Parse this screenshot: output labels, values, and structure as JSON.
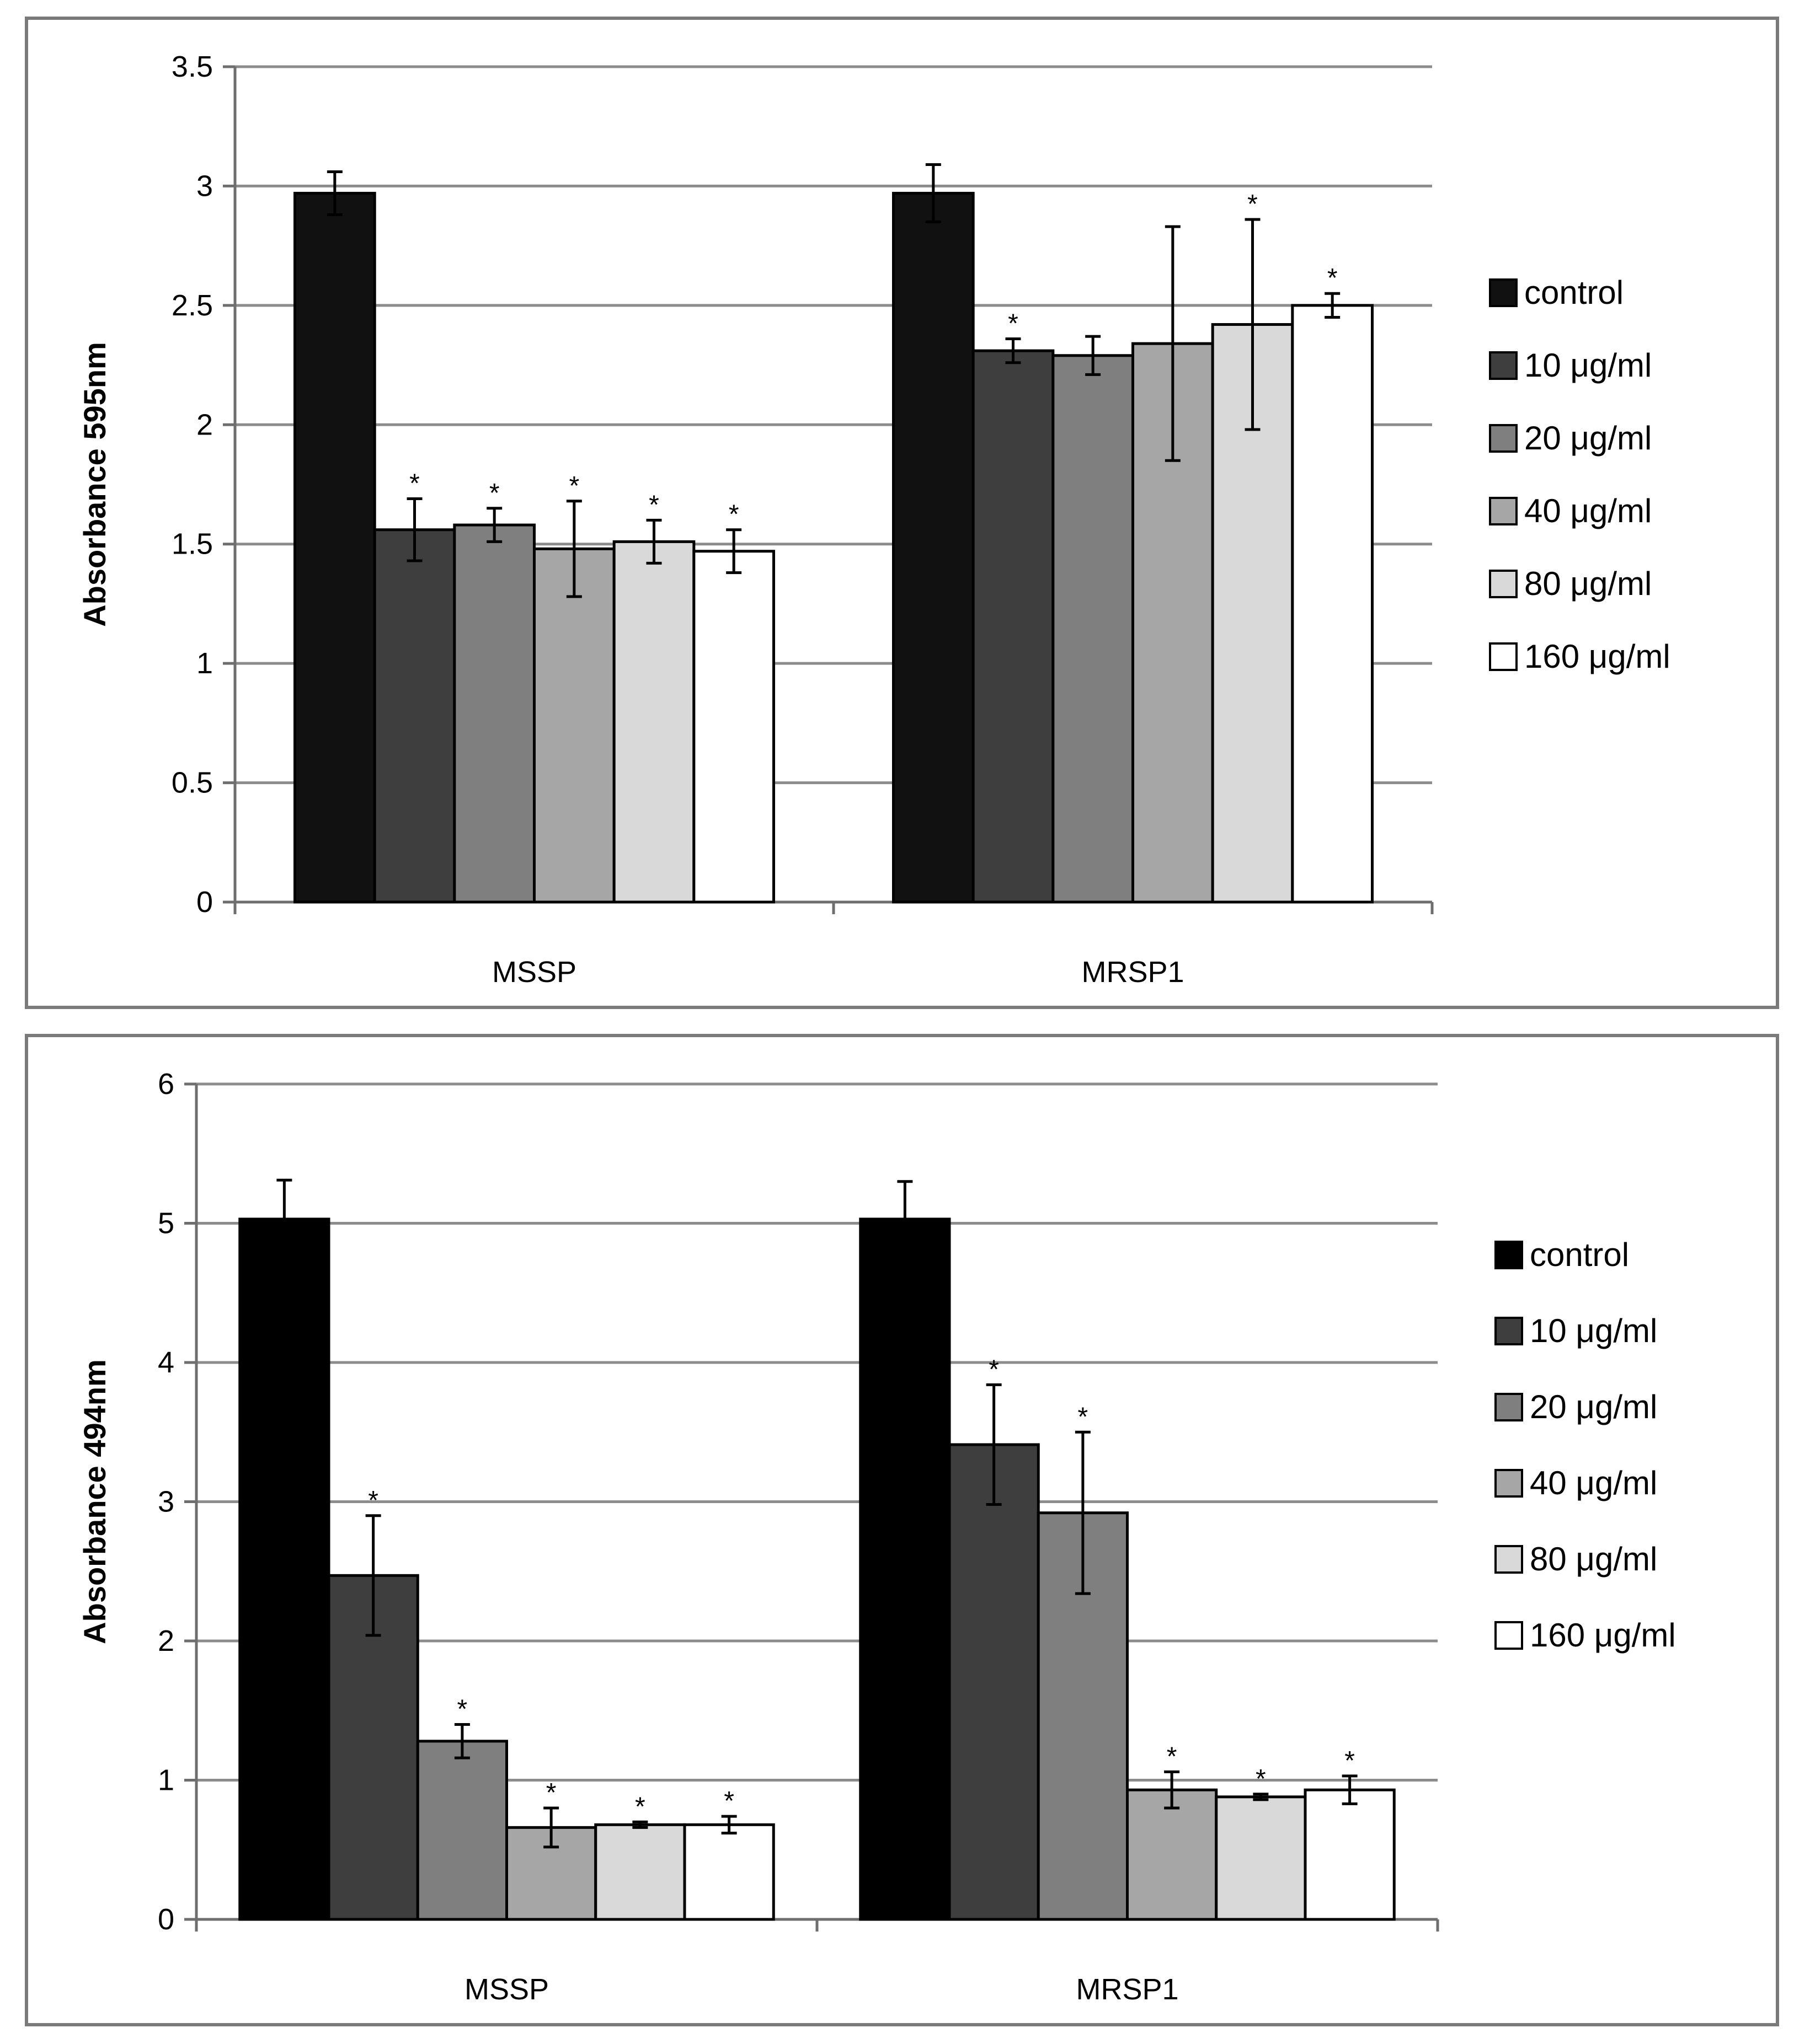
{
  "chart_data": [
    {
      "type": "bar",
      "title": "",
      "xlabel": "",
      "ylabel": "Absorbance 595nm",
      "ylim": [
        0,
        3.5
      ],
      "yticks": [
        "0",
        "0.5",
        "1",
        "1.5",
        "2",
        "2.5",
        "3",
        "3.5"
      ],
      "grid": true,
      "legend_position": "right",
      "categories": [
        "MSSP",
        "MRSP1"
      ],
      "series": [
        {
          "name": "control",
          "color": "#111111",
          "values": [
            2.97,
            2.97
          ],
          "errors": [
            0.09,
            0.12
          ],
          "significant": [
            false,
            false
          ]
        },
        {
          "name": "10 μg/ml",
          "color": "#3e3e3e",
          "values": [
            1.56,
            2.31
          ],
          "errors": [
            0.13,
            0.05
          ],
          "significant": [
            true,
            true
          ]
        },
        {
          "name": "20 μg/ml",
          "color": "#7f7f7f",
          "values": [
            1.58,
            2.29
          ],
          "errors": [
            0.07,
            0.08
          ],
          "significant": [
            true,
            false
          ]
        },
        {
          "name": "40 μg/ml",
          "color": "#a6a6a6",
          "values": [
            1.48,
            2.34
          ],
          "errors": [
            0.2,
            0.49
          ],
          "significant": [
            true,
            false
          ]
        },
        {
          "name": "80 μg/ml",
          "color": "#d9d9d9",
          "values": [
            1.51,
            2.42
          ],
          "errors": [
            0.09,
            0.44
          ],
          "significant": [
            true,
            true
          ]
        },
        {
          "name": "160 μg/ml",
          "color": "#ffffff",
          "values": [
            1.47,
            2.5
          ],
          "errors": [
            0.09,
            0.05
          ],
          "significant": [
            true,
            true
          ]
        }
      ],
      "annotation_marker": "*"
    },
    {
      "type": "bar",
      "title": "",
      "xlabel": "",
      "ylabel": "Absorbance 494nm",
      "ylim": [
        0,
        6
      ],
      "yticks": [
        "0",
        "1",
        "2",
        "3",
        "4",
        "5",
        "6"
      ],
      "grid": true,
      "legend_position": "right",
      "categories": [
        "MSSP",
        "MRSP1"
      ],
      "series": [
        {
          "name": "control",
          "color": "#000000",
          "values": [
            5.03,
            5.03
          ],
          "errors": [
            0.28,
            0.27
          ],
          "significant": [
            false,
            false
          ]
        },
        {
          "name": "10 μg/ml",
          "color": "#3e3e3e",
          "values": [
            2.47,
            3.41
          ],
          "errors": [
            0.43,
            0.43
          ],
          "significant": [
            true,
            true
          ]
        },
        {
          "name": "20 μg/ml",
          "color": "#7f7f7f",
          "values": [
            1.28,
            2.92
          ],
          "errors": [
            0.12,
            0.58
          ],
          "significant": [
            true,
            true
          ]
        },
        {
          "name": "40 μg/ml",
          "color": "#a6a6a6",
          "values": [
            0.66,
            0.93
          ],
          "errors": [
            0.14,
            0.13
          ],
          "significant": [
            true,
            true
          ]
        },
        {
          "name": "80 μg/ml",
          "color": "#d9d9d9",
          "values": [
            0.68,
            0.88
          ],
          "errors": [
            0.02,
            0.02
          ],
          "significant": [
            true,
            true
          ]
        },
        {
          "name": "160 μg/ml",
          "color": "#ffffff",
          "values": [
            0.68,
            0.93
          ],
          "errors": [
            0.06,
            0.1
          ],
          "significant": [
            true,
            true
          ]
        }
      ],
      "annotation_marker": "*"
    }
  ]
}
